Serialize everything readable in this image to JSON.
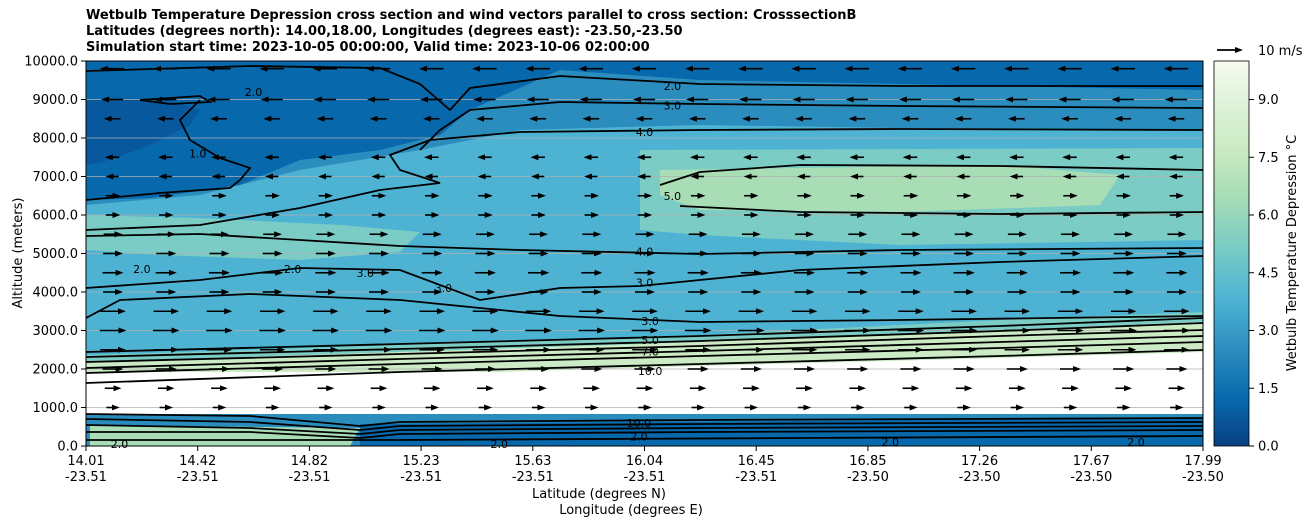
{
  "chart_data": {
    "type": "contour",
    "title": [
      "Wetbulb Temperature Depression cross section and wind vectors parallel to cross section: CrosssectionB",
      "Latitudes (degrees north): 14.00,18.00, Longitudes (degrees east): -23.50,-23.50",
      "Simulation start time: 2023-10-05 00:00:00, Valid time: 2023-10-06 02:00:00"
    ],
    "xlabel": "Latitude (degrees N)",
    "xlabel2": "Longitude (degrees E)",
    "ylabel": "Altitude (meters)",
    "x_ticks": [
      {
        "lat": "14.01",
        "lon": "-23.51",
        "pos": 0.0
      },
      {
        "lat": "14.42",
        "lon": "-23.51",
        "pos": 0.1
      },
      {
        "lat": "14.82",
        "lon": "-23.51",
        "pos": 0.2
      },
      {
        "lat": "15.23",
        "lon": "-23.51",
        "pos": 0.3
      },
      {
        "lat": "15.63",
        "lon": "-23.51",
        "pos": 0.4
      },
      {
        "lat": "16.04",
        "lon": "-23.51",
        "pos": 0.5
      },
      {
        "lat": "16.45",
        "lon": "-23.51",
        "pos": 0.6
      },
      {
        "lat": "16.85",
        "lon": "-23.50",
        "pos": 0.7
      },
      {
        "lat": "17.26",
        "lon": "-23.50",
        "pos": 0.8
      },
      {
        "lat": "17.67",
        "lon": "-23.50",
        "pos": 0.9
      },
      {
        "lat": "17.99",
        "lon": "-23.50",
        "pos": 1.0
      }
    ],
    "y_ticks": [
      "0.0",
      "1000.0",
      "2000.0",
      "3000.0",
      "4000.0",
      "5000.0",
      "6000.0",
      "7000.0",
      "8000.0",
      "9000.0",
      "10000.0"
    ],
    "ylim": [
      0,
      10000
    ],
    "grid": "horizontal",
    "colorbar": {
      "label": "Wetbulb Temperature Depression °C",
      "range": [
        0,
        10
      ],
      "ticks": [
        "0.0",
        "1.5",
        "3.0",
        "4.5",
        "6.0",
        "7.5",
        "9.0"
      ],
      "colormap": "GnBu_r",
      "colors": [
        "#084081",
        "#0868ac",
        "#2b8cbe",
        "#4eb3d3",
        "#7bccc4",
        "#a8ddb5",
        "#ccebc5",
        "#e0f3db",
        "#f7fcf0"
      ]
    },
    "quiver_key": "10 m/s",
    "contour_labels": [
      {
        "text": "2.0",
        "x": 0.525,
        "y": 9350
      },
      {
        "text": "3.0",
        "x": 0.525,
        "y": 8850
      },
      {
        "text": "4.0",
        "x": 0.5,
        "y": 8150
      },
      {
        "text": "5.0",
        "x": 0.525,
        "y": 6500
      },
      {
        "text": "4.0",
        "x": 0.5,
        "y": 5050
      },
      {
        "text": "3.0",
        "x": 0.5,
        "y": 4250
      },
      {
        "text": "3.0",
        "x": 0.505,
        "y": 3250
      },
      {
        "text": "5.0",
        "x": 0.505,
        "y": 2750
      },
      {
        "text": "7.0",
        "x": 0.505,
        "y": 2450
      },
      {
        "text": "10.0",
        "x": 0.505,
        "y": 1950
      },
      {
        "text": "10.0",
        "x": 0.495,
        "y": 600
      },
      {
        "text": "2.0",
        "x": 0.495,
        "y": 250
      },
      {
        "text": "2.0",
        "x": 0.15,
        "y": 9200
      },
      {
        "text": "1.0",
        "x": 0.1,
        "y": 7600
      },
      {
        "text": "2.0",
        "x": 0.05,
        "y": 4600
      },
      {
        "text": "2.0",
        "x": 0.185,
        "y": 4600
      },
      {
        "text": "3.0",
        "x": 0.25,
        "y": 4500
      },
      {
        "text": "3.0",
        "x": 0.32,
        "y": 4100
      },
      {
        "text": "2.0",
        "x": 0.03,
        "y": 50
      },
      {
        "text": "2.0",
        "x": 0.37,
        "y": 50
      },
      {
        "text": "2.0",
        "x": 0.72,
        "y": 100
      },
      {
        "text": "2.0",
        "x": 0.94,
        "y": 100
      }
    ],
    "wind_rows": [
      {
        "y": 9800,
        "dir": -1,
        "len": 0.7
      },
      {
        "y": 9000,
        "dir": -1,
        "len": 0.6
      },
      {
        "y": 8500,
        "dir": -1,
        "len": 0.35
      },
      {
        "y": 7500,
        "dir": -1,
        "len": 0.25
      },
      {
        "y": 7000,
        "dir": -1,
        "len": 0.2
      },
      {
        "y": 6500,
        "dir": 1,
        "len": 0.25
      },
      {
        "y": 6000,
        "dir": 1,
        "len": 0.25
      },
      {
        "y": 5500,
        "dir": 1,
        "len": 0.45
      },
      {
        "y": 5000,
        "dir": 1,
        "len": 0.5
      },
      {
        "y": 4500,
        "dir": 1,
        "len": 0.55
      },
      {
        "y": 4000,
        "dir": 1,
        "len": 0.5
      },
      {
        "y": 3500,
        "dir": 1,
        "len": 0.75
      },
      {
        "y": 3000,
        "dir": 1,
        "len": 0.8
      },
      {
        "y": 2500,
        "dir": 1,
        "len": 0.75
      },
      {
        "y": 2000,
        "dir": 1,
        "len": 0.55
      },
      {
        "y": 1500,
        "dir": 1,
        "len": 0.35
      },
      {
        "y": 1000,
        "dir": 1,
        "len": 0.2
      }
    ]
  }
}
